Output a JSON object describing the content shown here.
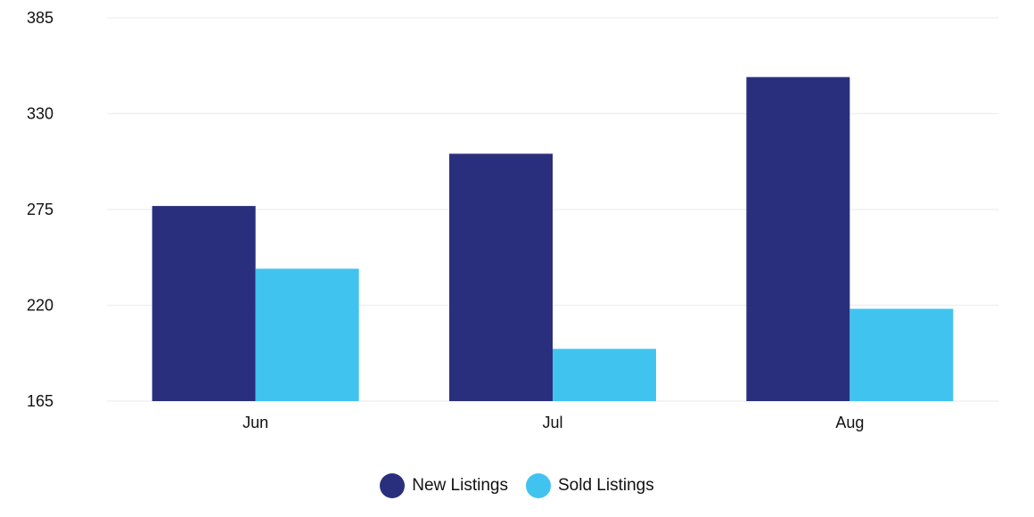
{
  "chart_data": {
    "type": "bar",
    "categories": [
      "Jun",
      "Jul",
      "Aug"
    ],
    "series": [
      {
        "name": "New Listings",
        "color": "#2a2f7d",
        "values": [
          277,
          307,
          351
        ]
      },
      {
        "name": "Sold Listings",
        "color": "#41c3f0",
        "values": [
          241,
          195,
          218
        ]
      }
    ],
    "ylim": [
      165,
      385
    ],
    "yticks": [
      165,
      220,
      275,
      330,
      385
    ],
    "grid": true,
    "legend_position": "bottom-center",
    "title": "",
    "xlabel": "",
    "ylabel": ""
  },
  "colors": {
    "grid": "#f0f0f0",
    "axis_text": "#111111"
  }
}
